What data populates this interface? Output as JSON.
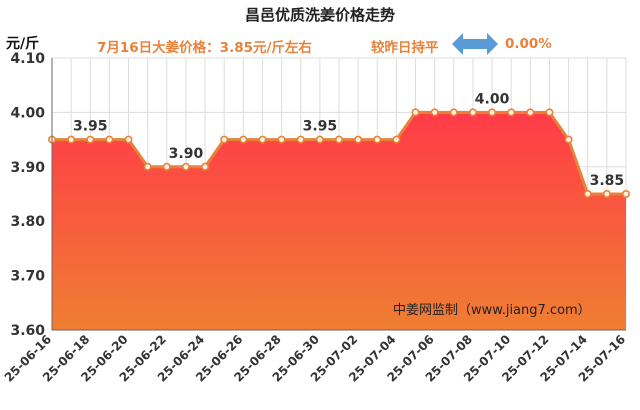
{
  "header": {
    "title": "昌邑优质洗姜价格走势",
    "unit": "元/斤",
    "price_note": "7月16日大姜价格：3.85元/斤左右",
    "compare_label": "较昨日持平",
    "change_pct": "0.00%"
  },
  "icons": {
    "change": "double-arrow-icon"
  },
  "colors": {
    "title": "#222222",
    "accent": "#e8823a",
    "arrow": "#5b9bd5",
    "line": "#e8823a",
    "area_top": "#ff3b48",
    "area_bottom": "#f07e32",
    "grid": "#dddddd"
  },
  "watermark": "中姜网监制（www.jiang7.com）",
  "chart_data": {
    "type": "area",
    "title": "昌邑优质洗姜价格走势",
    "ylabel": "元/斤",
    "ylim": [
      3.6,
      4.1
    ],
    "yticks": [
      "3.60",
      "3.70",
      "3.80",
      "3.90",
      "4.00",
      "4.10"
    ],
    "grid": true,
    "x": [
      "25-06-16",
      "25-06-17",
      "25-06-18",
      "25-06-19",
      "25-06-20",
      "25-06-21",
      "25-06-22",
      "25-06-23",
      "25-06-24",
      "25-06-25",
      "25-06-26",
      "25-06-27",
      "25-06-28",
      "25-06-29",
      "25-06-30",
      "25-07-01",
      "25-07-02",
      "25-07-03",
      "25-07-04",
      "25-07-05",
      "25-07-06",
      "25-07-07",
      "25-07-08",
      "25-07-09",
      "25-07-10",
      "25-07-11",
      "25-07-12",
      "25-07-13",
      "25-07-14",
      "25-07-15",
      "25-07-16"
    ],
    "xtick_labels": [
      "25-06-16",
      "25-06-18",
      "25-06-20",
      "25-06-22",
      "25-06-24",
      "25-06-26",
      "25-06-28",
      "25-06-30",
      "25-07-02",
      "25-07-04",
      "25-07-06",
      "25-07-08",
      "25-07-10",
      "25-07-12",
      "25-07-14",
      "25-07-16"
    ],
    "series": [
      {
        "values": [
          3.95,
          3.95,
          3.95,
          3.95,
          3.95,
          3.9,
          3.9,
          3.9,
          3.9,
          3.95,
          3.95,
          3.95,
          3.95,
          3.95,
          3.95,
          3.95,
          3.95,
          3.95,
          3.95,
          4.0,
          4.0,
          4.0,
          4.0,
          4.0,
          4.0,
          4.0,
          4.0,
          3.95,
          3.85,
          3.85,
          3.85
        ]
      }
    ],
    "data_labels": [
      {
        "x": "25-06-18",
        "text": "3.95"
      },
      {
        "x": "25-06-23",
        "text": "3.90"
      },
      {
        "x": "25-06-30",
        "text": "3.95"
      },
      {
        "x": "25-07-09",
        "text": "4.00"
      },
      {
        "x": "25-07-15",
        "text": "3.85"
      }
    ]
  }
}
